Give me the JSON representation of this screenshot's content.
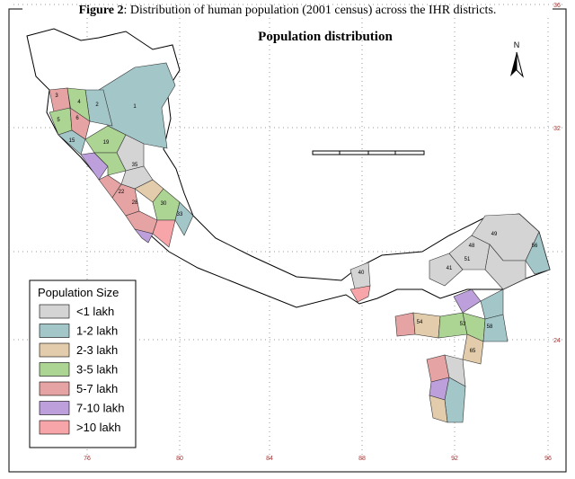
{
  "caption": {
    "label": "Figure 2",
    "text": ": Distribution of human population (2001 census) across the IHR districts."
  },
  "title": "Population distribution",
  "north": "N",
  "legend": {
    "title": "Population Size",
    "items": [
      {
        "label": "<1 lakh",
        "color": "#d4d4d4"
      },
      {
        "label": "1-2 lakh",
        "color": "#a3c6c9"
      },
      {
        "label": "2-3 lakh",
        "color": "#e3ccab"
      },
      {
        "label": "3-5 lakh",
        "color": "#acd593"
      },
      {
        "label": "5-7 lakh",
        "color": "#e6a3a3"
      },
      {
        "label": "7-10 lakh",
        "color": "#bc9fdb"
      },
      {
        "label": ">10 lakh",
        "color": "#f7a5a9"
      }
    ]
  },
  "lat_labels": [
    "36",
    "32",
    "24"
  ],
  "lon_labels": [
    "76",
    "80",
    "84",
    "88",
    "92",
    "96"
  ],
  "districts": [
    "1",
    "2",
    "3",
    "4",
    "5",
    "6",
    "15",
    "19",
    "22",
    "28",
    "30",
    "33",
    "35",
    "40",
    "41",
    "48",
    "49",
    "51",
    "53",
    "54",
    "58",
    "56",
    "65"
  ]
}
